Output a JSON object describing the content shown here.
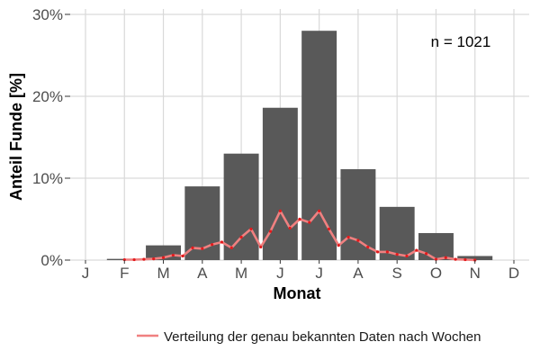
{
  "chart_data": {
    "type": "bar",
    "xlabel": "Monat",
    "ylabel": "Anteil Funde [%]",
    "categories": [
      "J",
      "F",
      "M",
      "A",
      "M",
      "J",
      "J",
      "A",
      "S",
      "O",
      "N",
      "D"
    ],
    "ylim": [
      0,
      30
    ],
    "yticks": [
      0,
      10,
      20,
      30
    ],
    "ytick_labels": [
      "0%",
      "10%",
      "20%",
      "30%"
    ],
    "grid": true,
    "annotation": "n = 1021",
    "colors": {
      "bars": "#595959",
      "line": "#f08080",
      "points": "#e31a1c",
      "grid": "#d9d9d9"
    },
    "series": [
      {
        "kind": "bar",
        "values": [
          0.0,
          0.15,
          1.8,
          9.0,
          13.0,
          18.6,
          28.0,
          11.1,
          6.5,
          3.3,
          0.5,
          0.0
        ]
      },
      {
        "kind": "line",
        "name": "Verteilung der genau bekannten Daten nach Wochen",
        "x": [
          2,
          2.25,
          2.5,
          2.75,
          3,
          3.25,
          3.5,
          3.75,
          4,
          4.25,
          4.5,
          4.75,
          5,
          5.25,
          5.5,
          5.75,
          6,
          6.25,
          6.5,
          6.75,
          7,
          7.25,
          7.5,
          7.75,
          8,
          8.25,
          8.5,
          8.75,
          9,
          9.25,
          9.5,
          9.75,
          10,
          10.25,
          10.5,
          10.75,
          11
        ],
        "values": [
          0.05,
          0.05,
          0.1,
          0.15,
          0.3,
          0.6,
          0.5,
          1.5,
          1.4,
          1.9,
          2.2,
          1.5,
          2.8,
          3.8,
          1.6,
          3.5,
          6.0,
          3.9,
          5.0,
          4.6,
          6.0,
          3.8,
          1.8,
          2.8,
          2.4,
          1.6,
          1.0,
          1.0,
          0.7,
          0.5,
          1.2,
          0.8,
          0.1,
          0.3,
          0.1,
          0.05,
          0.0
        ]
      }
    ],
    "legend": {
      "position": "bottom",
      "entries": [
        "Verteilung der genau bekannten Daten nach Wochen"
      ]
    }
  }
}
